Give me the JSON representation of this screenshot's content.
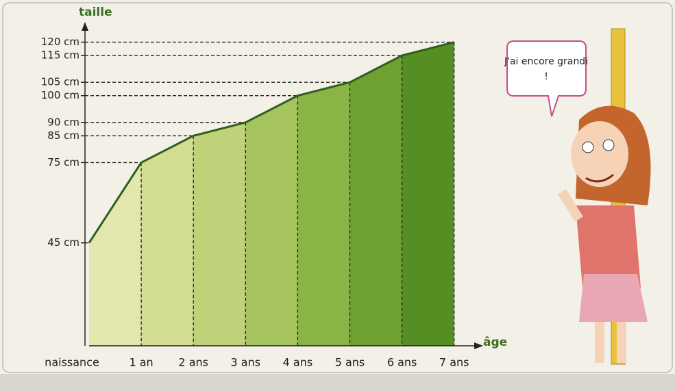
{
  "chart_data": {
    "type": "area",
    "x_label": "âge",
    "y_label": "taille",
    "categories": [
      "naissance",
      "1 an",
      "2 ans",
      "3 ans",
      "4 ans",
      "5 ans",
      "6 ans",
      "7 ans"
    ],
    "values": [
      45,
      75,
      85,
      90,
      100,
      105,
      115,
      120
    ],
    "color": "#2f5f1c",
    "segment_colors": [
      "#e4e7ad",
      "#d3dd92",
      "#bfd27a",
      "#a5c35f",
      "#8bb447",
      "#6fa032",
      "#558e22"
    ],
    "ylim": [
      5,
      125
    ],
    "yticks": [
      {
        "value": 45,
        "label": "45 cm"
      },
      {
        "value": 75,
        "label": "75 cm"
      },
      {
        "value": 85,
        "label": "85 cm"
      },
      {
        "value": 90,
        "label": "90 cm"
      },
      {
        "value": 100,
        "label": "100 cm"
      },
      {
        "value": 105,
        "label": "105 cm"
      },
      {
        "value": 115,
        "label": "115 cm"
      },
      {
        "value": 120,
        "label": "120 cm"
      }
    ],
    "annotation": "J'ai encore grandi !"
  }
}
